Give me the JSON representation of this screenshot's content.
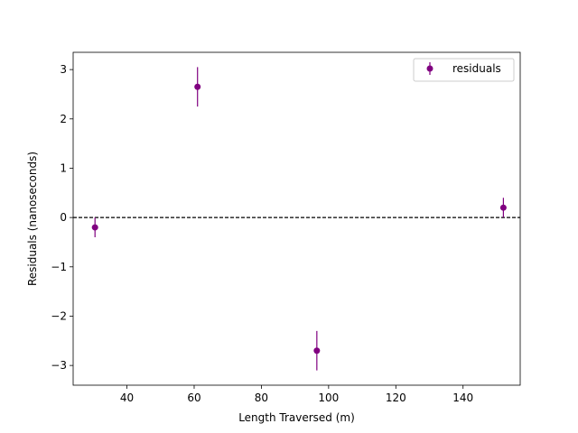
{
  "chart_data": {
    "type": "scatter",
    "title": "",
    "xlabel": "Length Traversed (m)",
    "ylabel": "Residuals (nanoseconds)",
    "xlim": [
      24,
      157
    ],
    "ylim": [
      -3.4,
      3.35
    ],
    "x_ticks": [
      40,
      60,
      80,
      100,
      120,
      140
    ],
    "y_ticks": [
      3,
      2,
      1,
      0,
      -1,
      -2,
      -3
    ],
    "x_tick_labels": [
      "40",
      "60",
      "80",
      "100",
      "120",
      "140"
    ],
    "y_tick_labels": [
      "3",
      "2",
      "1",
      "0",
      "−1",
      "−2",
      "−3"
    ],
    "grid": false,
    "legend_position": "top-right",
    "reference_line": {
      "y": 0,
      "style": "dashed",
      "color": "#000000"
    },
    "series": [
      {
        "name": "residuals",
        "color": "#800080",
        "marker": "circle",
        "points": [
          {
            "x": 30.5,
            "y": -0.2,
            "err": 0.2
          },
          {
            "x": 61.0,
            "y": 2.65,
            "err": 0.4
          },
          {
            "x": 96.5,
            "y": -2.7,
            "err": 0.4
          },
          {
            "x": 152.0,
            "y": 0.2,
            "err": 0.2
          }
        ]
      }
    ]
  }
}
